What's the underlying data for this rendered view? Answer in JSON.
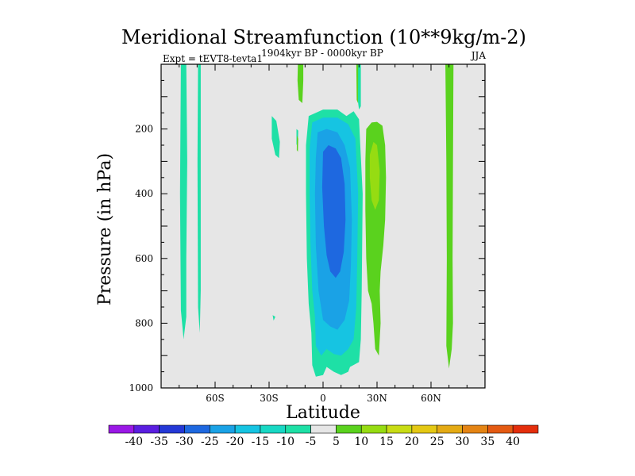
{
  "chart_data": {
    "type": "heatmap",
    "title": "Meridional Streamfunction (10**9kg/m-2)",
    "subtitle": "1904kyr BP - 0000kyr BP",
    "left_string": "Expt = tEVT8-tevta1",
    "right_string": "JJA",
    "xlabel": "Latitude",
    "ylabel": "Pressure (in hPa)",
    "xlim": [
      -90,
      90
    ],
    "ylim": [
      1000,
      0
    ],
    "x_ticks": [
      {
        "value": -60,
        "label": "60S"
      },
      {
        "value": -30,
        "label": "30S"
      },
      {
        "value": 0,
        "label": "0"
      },
      {
        "value": 30,
        "label": "30N"
      },
      {
        "value": 60,
        "label": "60N"
      }
    ],
    "y_ticks": [
      {
        "value": 200,
        "label": "200"
      },
      {
        "value": 400,
        "label": "400"
      },
      {
        "value": 600,
        "label": "600"
      },
      {
        "value": 800,
        "label": "800"
      },
      {
        "value": 1000,
        "label": "1000"
      }
    ],
    "background_color": "#e6e6e6",
    "colorbar": {
      "labels": [
        "-40",
        "-35",
        "-30",
        "-25",
        "-20",
        "-15",
        "-10",
        "-5",
        "5",
        "10",
        "15",
        "20",
        "25",
        "30",
        "35",
        "40"
      ],
      "colors": [
        "#9a18e6",
        "#5a1ee0",
        "#2438d6",
        "#1e68e0",
        "#1aa2e6",
        "#16c4e2",
        "#18d8c4",
        "#1ee0a6",
        "#e6e6e6",
        "#5ad21e",
        "#96dc12",
        "#c8dc14",
        "#e4c814",
        "#e4aa14",
        "#e48414",
        "#e45a12",
        "#e42e0c"
      ]
    },
    "contours": [
      {
        "level": "-10",
        "color": "#1ee0a6",
        "points": [
          [
            -79,
            0
          ],
          [
            -76,
            0
          ],
          [
            -75.5,
            300
          ],
          [
            -76,
            600
          ],
          [
            -76,
            780
          ],
          [
            -77.5,
            850
          ],
          [
            -79,
            760
          ],
          [
            -79.5,
            400
          ]
        ]
      },
      {
        "level": "-10",
        "color": "#1ee0a6",
        "points": [
          [
            -69.5,
            0
          ],
          [
            -68,
            0
          ],
          [
            -68,
            300
          ],
          [
            -68,
            700
          ],
          [
            -68.5,
            830
          ],
          [
            -69.5,
            750
          ],
          [
            -69.8,
            300
          ]
        ]
      },
      {
        "level": "-10",
        "color": "#1ee0a6",
        "points": [
          [
            -28.5,
            160
          ],
          [
            -26,
            175
          ],
          [
            -24,
            240
          ],
          [
            -24.5,
            290
          ],
          [
            -26.5,
            280
          ],
          [
            -28.5,
            230
          ]
        ]
      },
      {
        "level": "-10",
        "color": "#1ee0a6",
        "points": [
          [
            -28,
            775
          ],
          [
            -26.5,
            780
          ],
          [
            -27.5,
            792
          ]
        ]
      },
      {
        "level": "-10",
        "color": "#1ee0a6",
        "points": [
          [
            -14.8,
            200
          ],
          [
            -13.8,
            205
          ],
          [
            -14,
            250
          ],
          [
            -14.8,
            248
          ]
        ]
      },
      {
        "level": "-10",
        "color": "#1ee0a6",
        "points": [
          [
            -8,
            160
          ],
          [
            0,
            140
          ],
          [
            8,
            140
          ],
          [
            13,
            160
          ],
          [
            17,
            145
          ],
          [
            20,
            170
          ],
          [
            22,
            400
          ],
          [
            21.5,
            700
          ],
          [
            21,
            850
          ],
          [
            20,
            920
          ],
          [
            15,
            935
          ],
          [
            14,
            950
          ],
          [
            10,
            960
          ],
          [
            6,
            950
          ],
          [
            2,
            935
          ],
          [
            0,
            960
          ],
          [
            -4,
            965
          ],
          [
            -6,
            930
          ],
          [
            -6.5,
            830
          ],
          [
            -8,
            740
          ],
          [
            -9,
            600
          ],
          [
            -9.5,
            400
          ],
          [
            -9.5,
            250
          ]
        ]
      },
      {
        "level": "-10",
        "color": "#1ee0a6",
        "points": [
          [
            19,
            0
          ],
          [
            21,
            0
          ],
          [
            21,
            130
          ],
          [
            20,
            140
          ],
          [
            19,
            100
          ]
        ]
      },
      {
        "level": "-15",
        "color": "#16c4e2",
        "points": [
          [
            -6,
            180
          ],
          [
            0,
            165
          ],
          [
            8,
            165
          ],
          [
            14,
            185
          ],
          [
            18,
            230
          ],
          [
            19.5,
            400
          ],
          [
            19,
            600
          ],
          [
            18.5,
            750
          ],
          [
            17,
            850
          ],
          [
            14,
            880
          ],
          [
            10,
            900
          ],
          [
            6,
            895
          ],
          [
            2,
            880
          ],
          [
            -1,
            900
          ],
          [
            -4,
            870
          ],
          [
            -4.5,
            780
          ],
          [
            -6,
            700
          ],
          [
            -7,
            550
          ],
          [
            -7.5,
            400
          ],
          [
            -7.5,
            260
          ]
        ]
      },
      {
        "level": "-20",
        "color": "#1aa2e6",
        "points": [
          [
            -3,
            210
          ],
          [
            2,
            200
          ],
          [
            8,
            210
          ],
          [
            12,
            250
          ],
          [
            15,
            320
          ],
          [
            16,
            480
          ],
          [
            15.5,
            620
          ],
          [
            14.5,
            730
          ],
          [
            12,
            790
          ],
          [
            8,
            820
          ],
          [
            4,
            810
          ],
          [
            0,
            790
          ],
          [
            -2.5,
            700
          ],
          [
            -4,
            560
          ],
          [
            -4.5,
            400
          ],
          [
            -4,
            290
          ]
        ]
      },
      {
        "level": "-25",
        "color": "#1e68e0",
        "points": [
          [
            0,
            270
          ],
          [
            3,
            250
          ],
          [
            7,
            260
          ],
          [
            10,
            290
          ],
          [
            12,
            370
          ],
          [
            12.5,
            480
          ],
          [
            11.5,
            580
          ],
          [
            9.5,
            640
          ],
          [
            7,
            660
          ],
          [
            4,
            640
          ],
          [
            2,
            590
          ],
          [
            0.5,
            500
          ],
          [
            -0.5,
            380
          ]
        ]
      },
      {
        "level": "5",
        "color": "#5ad21e",
        "points": [
          [
            -14,
            0
          ],
          [
            -11,
            0
          ],
          [
            -11,
            50
          ],
          [
            -11.5,
            120
          ],
          [
            -13.5,
            110
          ],
          [
            -14.2,
            50
          ]
        ]
      },
      {
        "level": "5",
        "color": "#5ad21e",
        "points": [
          [
            -14.5,
            220
          ],
          [
            -13.8,
            230
          ],
          [
            -14,
            270
          ],
          [
            -14.6,
            265
          ]
        ]
      },
      {
        "level": "5",
        "color": "#5ad21e",
        "points": [
          [
            18.5,
            0
          ],
          [
            19.5,
            0
          ],
          [
            19.4,
            120
          ],
          [
            18.7,
            110
          ]
        ]
      },
      {
        "level": "5",
        "color": "#5ad21e",
        "points": [
          [
            24,
            200
          ],
          [
            27,
            180
          ],
          [
            30,
            178
          ],
          [
            33,
            190
          ],
          [
            34.5,
            250
          ],
          [
            35,
            350
          ],
          [
            34.5,
            480
          ],
          [
            33.5,
            560
          ],
          [
            32,
            640
          ],
          [
            31.5,
            700
          ],
          [
            32,
            800
          ],
          [
            31,
            900
          ],
          [
            29,
            880
          ],
          [
            28,
            800
          ],
          [
            27,
            740
          ],
          [
            25,
            700
          ],
          [
            24,
            600
          ],
          [
            23.5,
            450
          ],
          [
            23.5,
            300
          ]
        ]
      },
      {
        "level": "5",
        "color": "#5ad21e",
        "points": [
          [
            68,
            0
          ],
          [
            72.5,
            0
          ],
          [
            72.2,
            300
          ],
          [
            72,
            600
          ],
          [
            72.2,
            800
          ],
          [
            71.5,
            880
          ],
          [
            70,
            940
          ],
          [
            68.5,
            870
          ],
          [
            68.8,
            600
          ],
          [
            68.5,
            300
          ]
        ]
      },
      {
        "level": "10",
        "color": "#96dc12",
        "points": [
          [
            26,
            280
          ],
          [
            28,
            240
          ],
          [
            30,
            250
          ],
          [
            31.5,
            330
          ],
          [
            31,
            420
          ],
          [
            29,
            450
          ],
          [
            27,
            420
          ],
          [
            26,
            350
          ]
        ]
      }
    ]
  }
}
